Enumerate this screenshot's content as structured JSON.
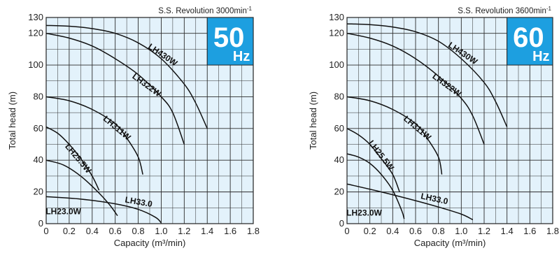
{
  "chart_data": [
    {
      "type": "line",
      "revolution": "S.S. Revolution 3000min",
      "revolution_sup": "-1",
      "frequency": "50",
      "frequency_unit": "Hz",
      "xlabel": "Capacity (m³/min)",
      "ylabel": "Total head (m)",
      "xlim": [
        0,
        1.8
      ],
      "ylim": [
        0,
        130
      ],
      "xticks": [
        "0",
        "0.2",
        "0.4",
        "0.6",
        "0.8",
        "1.0",
        "1.2",
        "1.4",
        "1.6",
        "1.8"
      ],
      "yticks": [
        "0",
        "20",
        "40",
        "60",
        "80",
        "100",
        "120",
        "130"
      ],
      "grid": true,
      "series": [
        {
          "name": "LH430W",
          "points": [
            [
              0,
              125
            ],
            [
              0.2,
              124.5
            ],
            [
              0.4,
              123
            ],
            [
              0.6,
              120
            ],
            [
              0.8,
              114
            ],
            [
              1.0,
              104
            ],
            [
              1.2,
              88
            ],
            [
              1.3,
              76
            ],
            [
              1.4,
              60
            ]
          ],
          "label": {
            "x": 1.0,
            "y": 105,
            "angle": 34
          }
        },
        {
          "name": "LH322W",
          "points": [
            [
              0,
              120
            ],
            [
              0.2,
              117
            ],
            [
              0.4,
              112
            ],
            [
              0.6,
              104
            ],
            [
              0.8,
              94
            ],
            [
              1.0,
              80
            ],
            [
              1.1,
              70
            ],
            [
              1.2,
              50
            ]
          ],
          "label": {
            "x": 0.86,
            "y": 86,
            "angle": 36
          }
        },
        {
          "name": "LH311W",
          "points": [
            [
              0,
              80
            ],
            [
              0.2,
              77.5
            ],
            [
              0.4,
              72
            ],
            [
              0.6,
              63
            ],
            [
              0.7,
              54
            ],
            [
              0.8,
              42
            ],
            [
              0.84,
              31
            ]
          ],
          "label": {
            "x": 0.6,
            "y": 59,
            "angle": 40
          }
        },
        {
          "name": "LH25.5W",
          "points": [
            [
              0,
              61
            ],
            [
              0.1,
              57
            ],
            [
              0.2,
              50
            ],
            [
              0.3,
              41
            ],
            [
              0.4,
              30
            ],
            [
              0.46,
              21
            ]
          ],
          "label": {
            "x": 0.26,
            "y": 40,
            "angle": 50
          }
        },
        {
          "name": "LH33.0",
          "points": [
            [
              0,
              40
            ],
            [
              0.15,
              37
            ],
            [
              0.3,
              30
            ],
            [
              0.45,
              20
            ],
            [
              0.55,
              12
            ],
            [
              0.62,
              5
            ]
          ],
          "label": {
            "x": 0.8,
            "y": 12,
            "angle": 10
          }
        },
        {
          "name": "LH23.0W",
          "points": [
            [
              0,
              17
            ],
            [
              0.3,
              15.5
            ],
            [
              0.6,
              12.5
            ],
            [
              0.8,
              9
            ],
            [
              0.95,
              4
            ],
            [
              1.0,
              0.5
            ]
          ],
          "label": {
            "x": 0.15,
            "y": 6,
            "angle": 0
          }
        }
      ]
    },
    {
      "type": "line",
      "revolution": "S.S. Revolution 3600min",
      "revolution_sup": "-1",
      "frequency": "60",
      "frequency_unit": "Hz",
      "xlabel": "Capacity (m³/min)",
      "ylabel": "Total head (m)",
      "xlim": [
        0,
        1.8
      ],
      "ylim": [
        0,
        130
      ],
      "xticks": [
        "0",
        "0.2",
        "0.4",
        "0.6",
        "0.8",
        "1.0",
        "1.2",
        "1.4",
        "1.6",
        "1.8"
      ],
      "yticks": [
        "0",
        "20",
        "40",
        "60",
        "80",
        "100",
        "120",
        "130"
      ],
      "grid": true,
      "series": [
        {
          "name": "LH430W",
          "points": [
            [
              0,
              126
            ],
            [
              0.2,
              125.5
            ],
            [
              0.4,
              124
            ],
            [
              0.6,
              121
            ],
            [
              0.8,
              115
            ],
            [
              1.0,
              104
            ],
            [
              1.2,
              89
            ],
            [
              1.3,
              77
            ],
            [
              1.4,
              61
            ]
          ],
          "label": {
            "x": 1.0,
            "y": 106,
            "angle": 34
          }
        },
        {
          "name": "LH322W",
          "points": [
            [
              0,
              120
            ],
            [
              0.2,
              117
            ],
            [
              0.4,
              112
            ],
            [
              0.6,
              104
            ],
            [
              0.8,
              93
            ],
            [
              1.0,
              79
            ],
            [
              1.1,
              68
            ],
            [
              1.2,
              50
            ]
          ],
          "label": {
            "x": 0.86,
            "y": 86,
            "angle": 36
          }
        },
        {
          "name": "LH311W",
          "points": [
            [
              0,
              80
            ],
            [
              0.2,
              77.5
            ],
            [
              0.4,
              72
            ],
            [
              0.6,
              63
            ],
            [
              0.7,
              54
            ],
            [
              0.8,
              42
            ],
            [
              0.83,
              31
            ]
          ],
          "label": {
            "x": 0.6,
            "y": 59,
            "angle": 40
          }
        },
        {
          "name": "LH25.5W",
          "points": [
            [
              0,
              60
            ],
            [
              0.1,
              56
            ],
            [
              0.2,
              50
            ],
            [
              0.3,
              41
            ],
            [
              0.4,
              31
            ],
            [
              0.46,
              20
            ]
          ],
          "label": {
            "x": 0.28,
            "y": 42,
            "angle": 52
          }
        },
        {
          "name": "LH33.0",
          "points": [
            [
              0,
              44
            ],
            [
              0.1,
              42
            ],
            [
              0.2,
              38
            ],
            [
              0.3,
              31
            ],
            [
              0.4,
              21
            ],
            [
              0.48,
              8
            ],
            [
              0.5,
              3
            ]
          ],
          "label": {
            "x": 0.76,
            "y": 14,
            "angle": 12
          }
        },
        {
          "name": "LH23.0W",
          "points": [
            [
              0,
              25
            ],
            [
              0.3,
              20
            ],
            [
              0.6,
              14.5
            ],
            [
              0.8,
              10.5
            ],
            [
              1.0,
              6
            ],
            [
              1.1,
              2.5
            ]
          ],
          "label": {
            "x": 0.15,
            "y": 5,
            "angle": 0
          }
        }
      ]
    }
  ]
}
